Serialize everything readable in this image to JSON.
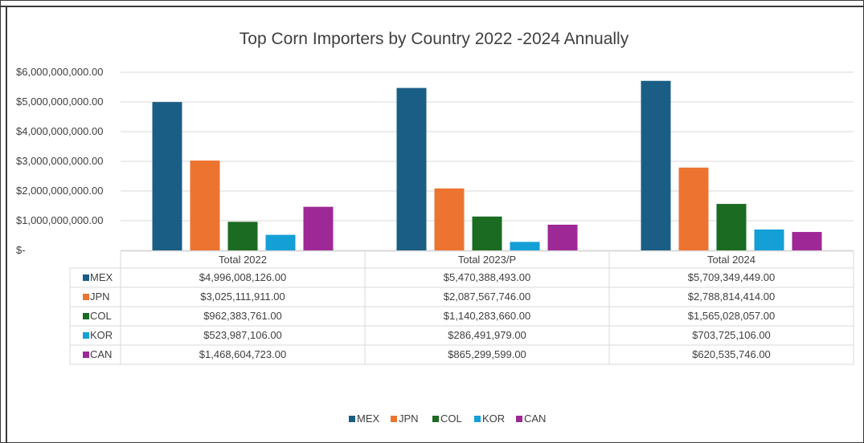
{
  "chart_data": {
    "type": "bar",
    "title": "Top Corn Importers by Country 2022 -2024 Annually",
    "categories": [
      "Total 2022",
      "Total 2023/P",
      "Total 2024"
    ],
    "y_tick_labels": [
      "$6,000,000,000.00",
      "$5,000,000,000.00",
      "$4,000,000,000.00",
      "$3,000,000,000.00",
      "$2,000,000,000.00",
      "$1,000,000,000.00",
      "$-"
    ],
    "y_ticks": [
      6000000000,
      5000000000,
      4000000000,
      3000000000,
      2000000000,
      1000000000,
      0
    ],
    "ylim": [
      0,
      6000000000
    ],
    "grid": true,
    "legend_position": "bottom",
    "series": [
      {
        "name": "MEX",
        "color": "#1a5e85",
        "values": [
          4996008126.0,
          5470388493.0,
          5709349449.0
        ],
        "labels": [
          "$4,996,008,126.00",
          "$5,470,388,493.00",
          "$5,709,349,449.00"
        ]
      },
      {
        "name": "JPN",
        "color": "#ed7430",
        "values": [
          3025111911.0,
          2087567746.0,
          2788814414.0
        ],
        "labels": [
          "$3,025,111,911.00",
          "$2,087,567,746.00",
          "$2,788,814,414.00"
        ]
      },
      {
        "name": "COL",
        "color": "#1b6b22",
        "values": [
          962383761.0,
          1140283660.0,
          1565028057.0
        ],
        "labels": [
          "$962,383,761.00",
          "$1,140,283,660.00",
          "$1,565,028,057.00"
        ]
      },
      {
        "name": "KOR",
        "color": "#14a0d7",
        "values": [
          523987106.0,
          286491979.0,
          703725106.0
        ],
        "labels": [
          "$523,987,106.00",
          "$286,491,979.00",
          "$703,725,106.00"
        ]
      },
      {
        "name": "CAN",
        "color": "#9e2896",
        "values": [
          1468604723.0,
          865299599.0,
          620535746.0
        ],
        "labels": [
          "$1,468,604,723.00",
          "$865,299,599.00",
          "$620,535,746.00"
        ]
      }
    ]
  }
}
